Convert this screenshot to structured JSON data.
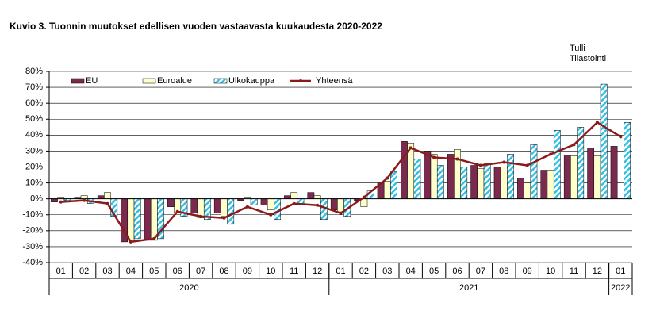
{
  "chart_data": {
    "type": "bar",
    "title": "Kuvio  3. Tuonnin  muutokset edellisen vuoden  vastaavasta kuukaudesta 2020-2022",
    "source": [
      "Tulli",
      "Tilastointi"
    ],
    "categories": [
      "01",
      "02",
      "03",
      "04",
      "05",
      "06",
      "07",
      "08",
      "09",
      "10",
      "11",
      "12",
      "01",
      "02",
      "03",
      "04",
      "05",
      "06",
      "07",
      "08",
      "09",
      "10",
      "11",
      "12",
      "01"
    ],
    "year_groups": [
      {
        "label": "2020",
        "count": 12
      },
      {
        "label": "2021",
        "count": 12
      },
      {
        "label": "2022",
        "count": 1
      }
    ],
    "series": [
      {
        "name": "EU",
        "type": "bar",
        "color": "#7b2a4e",
        "values": [
          -2,
          1,
          2,
          -27,
          -26,
          -5,
          -9,
          -9,
          -1,
          -4,
          2,
          4,
          -7,
          -1,
          10,
          36,
          30,
          28,
          21,
          20,
          13,
          18,
          27,
          32,
          33
        ]
      },
      {
        "name": "Euroalue",
        "type": "bar",
        "color": "#ffffcc",
        "values": [
          1,
          2,
          4,
          -26,
          -26,
          -9,
          -12,
          -11,
          1,
          -7,
          4,
          2,
          -9,
          -5,
          11,
          35,
          28,
          31,
          19,
          20,
          10,
          18,
          27,
          27,
          null
        ]
      },
      {
        "name": "Ulkokauppa",
        "type": "bar",
        "color": "#33c0e6",
        "hatch": true,
        "values": [
          -1,
          -3,
          -11,
          -25,
          -25,
          -11,
          -13,
          -16,
          -4,
          -13,
          -4,
          -13,
          -11,
          5,
          17,
          25,
          21,
          20,
          22,
          28,
          34,
          43,
          45,
          72,
          48
        ]
      },
      {
        "name": "Yhteensä",
        "type": "line",
        "color": "#8b1a1a",
        "values": [
          -2,
          -1,
          -3,
          -27,
          -25,
          -8,
          -11,
          -12,
          -5,
          -10,
          -3,
          -4,
          -9,
          1,
          13,
          32,
          26,
          25,
          21,
          23,
          21,
          28,
          34,
          48,
          39
        ]
      }
    ],
    "ylim": [
      -40,
      80
    ],
    "yticks": [
      {
        "value": -40,
        "label": "-40%"
      },
      {
        "value": -30,
        "label": "-30%"
      },
      {
        "value": -20,
        "label": "-20%"
      },
      {
        "value": -10,
        "label": "-10%"
      },
      {
        "value": 0,
        "label": "0%"
      },
      {
        "value": 10,
        "label": "10%"
      },
      {
        "value": 20,
        "label": "20%"
      },
      {
        "value": 30,
        "label": "30%"
      },
      {
        "value": 40,
        "label": "40%"
      },
      {
        "value": 50,
        "label": "50%"
      },
      {
        "value": 60,
        "label": "60%"
      },
      {
        "value": 70,
        "label": "70%"
      },
      {
        "value": 80,
        "label": "80%"
      }
    ],
    "grid": true
  }
}
